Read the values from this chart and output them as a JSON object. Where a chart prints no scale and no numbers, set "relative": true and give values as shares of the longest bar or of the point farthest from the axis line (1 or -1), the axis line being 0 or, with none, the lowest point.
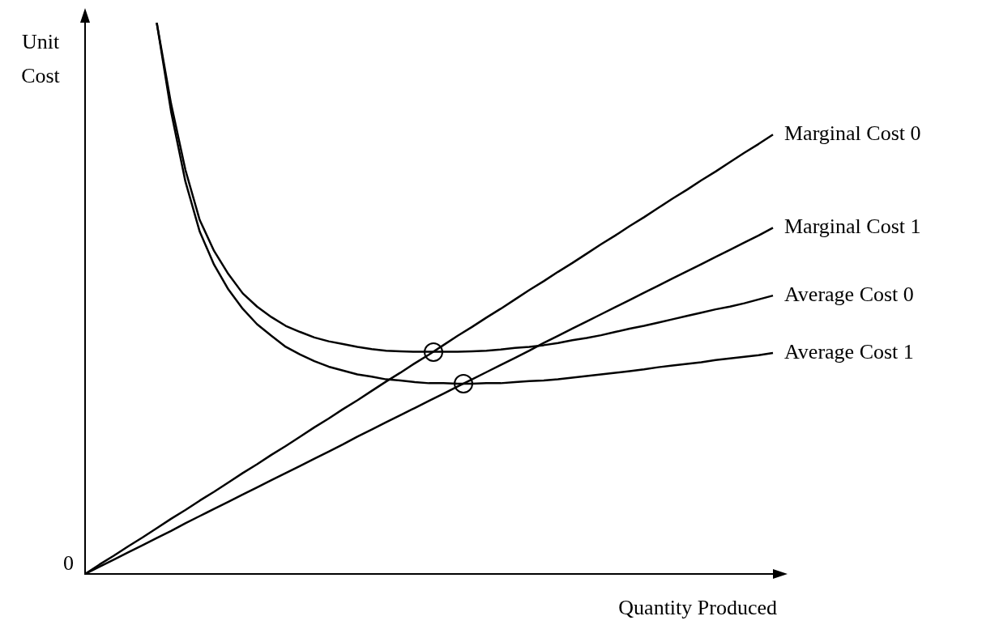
{
  "chart_data": {
    "type": "line",
    "relative": true,
    "xlabel": "Quantity Produced",
    "ylabel": "Unit Cost",
    "annotations": [
      "0"
    ],
    "grid": false,
    "legend": false,
    "marker": "none",
    "line_style": "solid",
    "categories": [
      null,
      null,
      null,
      null,
      null,
      null,
      null,
      null,
      null,
      null,
      null,
      null,
      null,
      null,
      null,
      null,
      null,
      null,
      null,
      null,
      null,
      null,
      null,
      null,
      null,
      null,
      null,
      null,
      null,
      null,
      null,
      null,
      null,
      null,
      null,
      null,
      null,
      null,
      null,
      null,
      null,
      null,
      null,
      null,
      null,
      null,
      null,
      null,
      null
    ],
    "series": [
      {
        "name": "Marginal Cost 0",
        "color": "#000000",
        "values": [
          0,
          0.017,
          0.033,
          0.05,
          0.066,
          0.083,
          0.1,
          0.116,
          0.133,
          0.149,
          0.166,
          0.183,
          0.199,
          0.216,
          0.232,
          0.249,
          0.266,
          0.282,
          0.299,
          0.315,
          0.332,
          0.349,
          0.365,
          0.382,
          0.398,
          0.415,
          0.432,
          0.448,
          0.465,
          0.481,
          0.498,
          0.515,
          0.531,
          0.548,
          0.564,
          0.581,
          0.598,
          0.614,
          0.631,
          0.647,
          0.664,
          0.681,
          0.697,
          0.714,
          0.73,
          0.747,
          0.764,
          0.78,
          0.797
        ]
      },
      {
        "name": "Marginal Cost 1",
        "color": "#000000",
        "values": [
          0,
          0.013,
          0.026,
          0.039,
          0.052,
          0.065,
          0.078,
          0.092,
          0.105,
          0.118,
          0.131,
          0.144,
          0.157,
          0.17,
          0.183,
          0.196,
          0.209,
          0.222,
          0.235,
          0.249,
          0.262,
          0.275,
          0.288,
          0.301,
          0.314,
          0.327,
          0.34,
          0.353,
          0.366,
          0.379,
          0.392,
          0.405,
          0.419,
          0.432,
          0.445,
          0.458,
          0.471,
          0.484,
          0.497,
          0.51,
          0.523,
          0.536,
          0.549,
          0.562,
          0.575,
          0.588,
          0.601,
          0.614,
          0.628
        ]
      },
      {
        "name": "Average Cost 0",
        "color": "#000000",
        "values": [
          null,
          null,
          null,
          null,
          null,
          1,
          0.853,
          0.733,
          0.642,
          0.586,
          0.544,
          0.509,
          0.485,
          0.466,
          0.45,
          0.439,
          0.429,
          0.422,
          0.417,
          0.412,
          0.408,
          0.405,
          0.404,
          0.403,
          0.403,
          0.403,
          0.403,
          0.404,
          0.405,
          0.407,
          0.41,
          0.412,
          0.415,
          0.419,
          0.424,
          0.428,
          0.433,
          0.439,
          0.445,
          0.45,
          0.456,
          0.462,
          0.468,
          0.474,
          0.48,
          0.485,
          0.491,
          0.498,
          0.505
        ]
      },
      {
        "name": "Average Cost 1",
        "color": "#000000",
        "values": [
          null,
          null,
          null,
          null,
          null,
          1,
          0.839,
          0.712,
          0.621,
          0.561,
          0.516,
          0.481,
          0.453,
          0.432,
          0.412,
          0.398,
          0.386,
          0.376,
          0.369,
          0.362,
          0.358,
          0.353,
          0.351,
          0.348,
          0.346,
          0.346,
          0.345,
          0.345,
          0.346,
          0.346,
          0.348,
          0.35,
          0.351,
          0.353,
          0.356,
          0.359,
          0.362,
          0.365,
          0.368,
          0.371,
          0.375,
          0.378,
          0.381,
          0.384,
          0.388,
          0.391,
          0.394,
          0.397,
          0.401
        ]
      }
    ]
  }
}
